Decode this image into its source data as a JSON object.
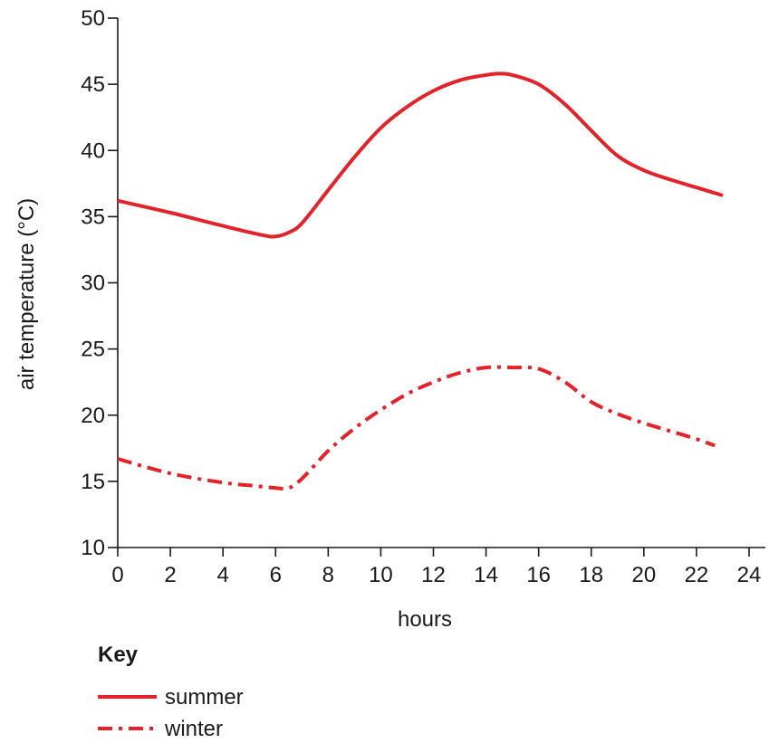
{
  "chart_data": {
    "type": "line",
    "xlabel": "hours",
    "ylabel": "air temperature (°C)",
    "xlim": [
      0,
      24
    ],
    "ylim": [
      10,
      50
    ],
    "xticks": [
      0,
      2,
      4,
      6,
      8,
      10,
      12,
      14,
      16,
      18,
      20,
      22,
      24
    ],
    "yticks": [
      10,
      15,
      20,
      25,
      30,
      35,
      40,
      45,
      50
    ],
    "grid": false,
    "legend": {
      "title": "Key",
      "placement": "bottom-left"
    },
    "series": [
      {
        "name": "summer",
        "style": "solid",
        "color": "#e3232a",
        "x": [
          0,
          2,
          4,
          5.5,
          6,
          6.5,
          7,
          8,
          9,
          10,
          11,
          12,
          13,
          14,
          14.5,
          15,
          16,
          17,
          18,
          19,
          20,
          21,
          22,
          23
        ],
        "y": [
          36.2,
          35.3,
          34.3,
          33.6,
          33.5,
          33.8,
          34.5,
          37.0,
          39.5,
          41.7,
          43.3,
          44.5,
          45.3,
          45.7,
          45.8,
          45.7,
          45.0,
          43.5,
          41.5,
          39.6,
          38.5,
          37.8,
          37.2,
          36.6
        ]
      },
      {
        "name": "winter",
        "style": "dash-dot",
        "color": "#e3232a",
        "x": [
          0,
          2,
          4,
          5,
          6,
          6.5,
          7,
          8,
          9,
          10,
          11,
          12,
          13,
          14,
          15,
          16,
          17,
          18,
          19,
          20,
          21,
          22,
          22.7
        ],
        "y": [
          16.7,
          15.6,
          14.9,
          14.7,
          14.5,
          14.5,
          15.2,
          17.3,
          19.0,
          20.4,
          21.6,
          22.5,
          23.2,
          23.6,
          23.6,
          23.5,
          22.5,
          21.0,
          20.1,
          19.4,
          18.8,
          18.2,
          17.7
        ]
      }
    ]
  }
}
